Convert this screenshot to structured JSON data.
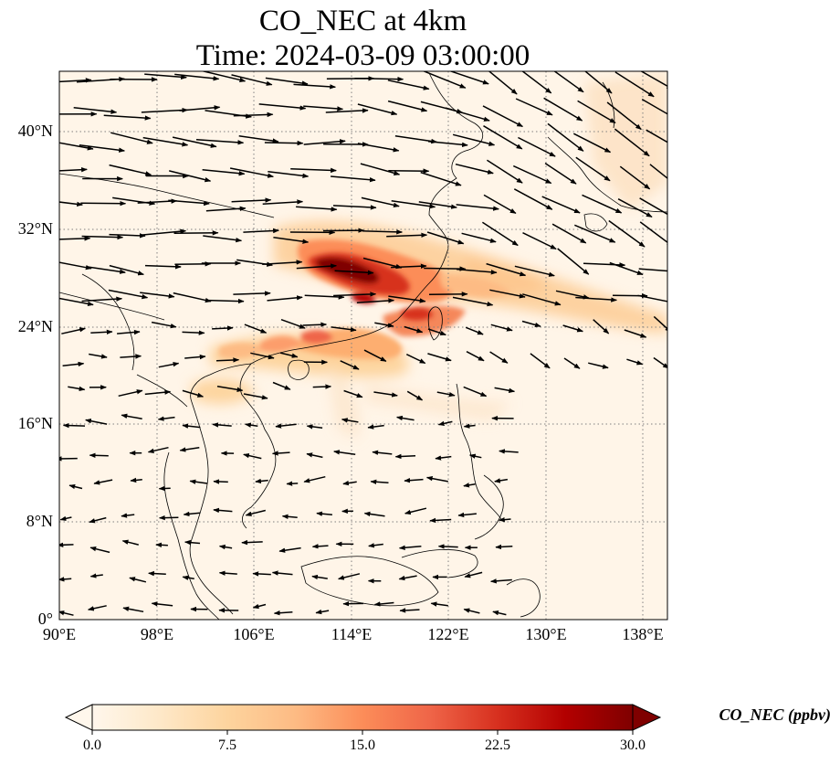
{
  "title": {
    "line1": "CO_NEC at 4km",
    "line2": "Time: 2024-03-09 03:00:00"
  },
  "map": {
    "extent": {
      "lon_min": 90,
      "lon_max": 140,
      "lat_min": 0,
      "lat_max": 45
    },
    "lon_ticks": [
      {
        "value": 90,
        "label": "90°E"
      },
      {
        "value": 98,
        "label": "98°E"
      },
      {
        "value": 106,
        "label": "106°E"
      },
      {
        "value": 114,
        "label": "114°E"
      },
      {
        "value": 122,
        "label": "122°E"
      },
      {
        "value": 130,
        "label": "130°E"
      },
      {
        "value": 138,
        "label": "138°E"
      }
    ],
    "lat_ticks": [
      {
        "value": 0,
        "label": "0°"
      },
      {
        "value": 8,
        "label": "8°N"
      },
      {
        "value": 16,
        "label": "16°N"
      },
      {
        "value": 24,
        "label": "24°N"
      },
      {
        "value": 32,
        "label": "32°N"
      },
      {
        "value": 40,
        "label": "40°N"
      }
    ],
    "gridlines": "dotted"
  },
  "colorbar": {
    "label": "CO_NEC (ppbv)",
    "min": 0.0,
    "max": 30.0,
    "extend": "both",
    "ticks": [
      "0.0",
      "7.5",
      "15.0",
      "22.5",
      "30.0"
    ],
    "colormap": [
      "#fff7ec",
      "#fee8c8",
      "#fdd49e",
      "#fdbb84",
      "#fc8d59",
      "#ef6548",
      "#d7301f",
      "#b30000",
      "#7f0000"
    ]
  },
  "colors": {
    "arrow": "#000000",
    "coast": "#000000",
    "grid": "#808080"
  }
}
